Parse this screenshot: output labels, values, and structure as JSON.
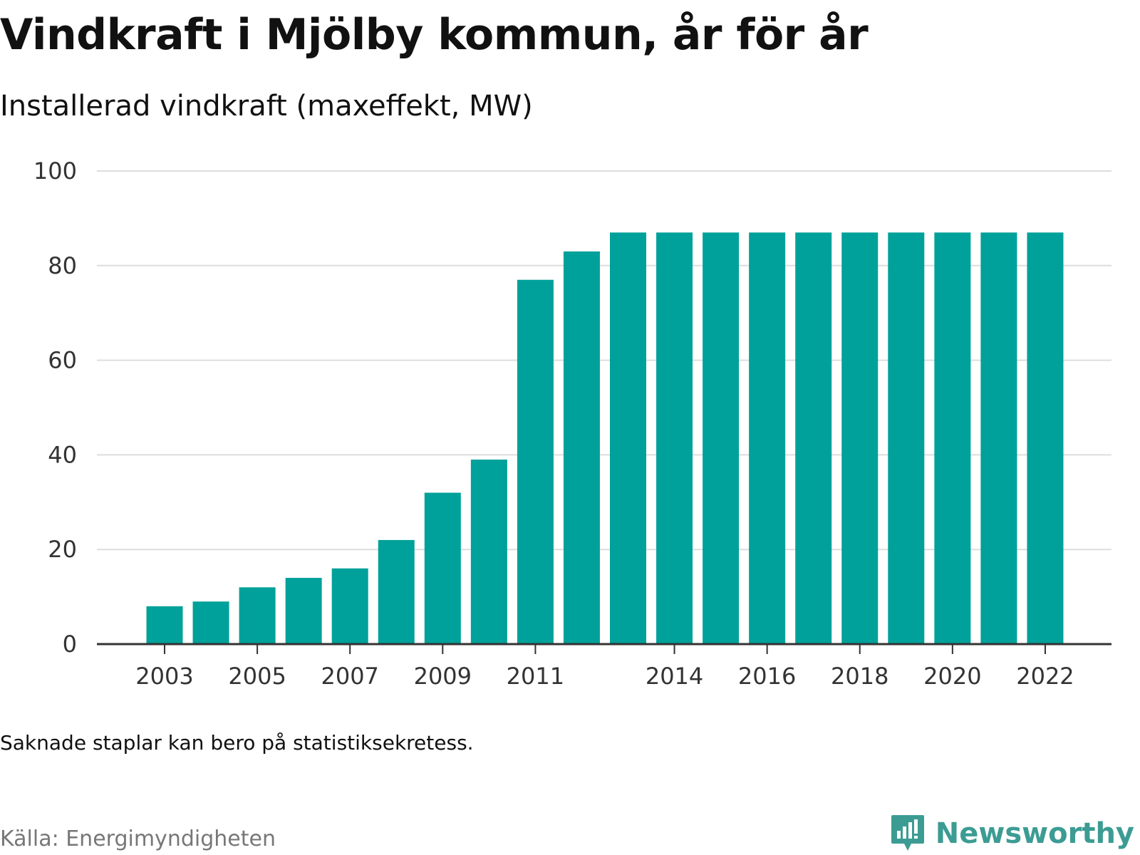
{
  "title": "Vindkraft i Mjölby kommun, år för år",
  "subtitle": "Installerad vindkraft (maxeffekt, MW)",
  "note": "Saknade staplar kan bero på statistiksekretess.",
  "source": "Källa: Energimyndigheten",
  "brand": {
    "name": "Newsworthy",
    "icon": "newsworthy-logo-icon",
    "color": "#3c9c93"
  },
  "colors": {
    "bar": "#00a19a",
    "grid": "#dddddd",
    "axis": "#333333"
  },
  "chart_data": {
    "type": "bar",
    "categories": [
      "2003",
      "2004",
      "2005",
      "2006",
      "2007",
      "2008",
      "2009",
      "2010",
      "2011",
      "2012",
      "2013",
      "2014",
      "2015",
      "2016",
      "2017",
      "2018",
      "2019",
      "2020",
      "2021",
      "2022"
    ],
    "values": [
      8,
      9,
      12,
      14,
      16,
      22,
      32,
      39,
      77,
      83,
      87,
      87,
      87,
      87,
      87,
      87,
      87,
      87,
      87,
      87
    ],
    "x_tick_labels": [
      "2003",
      "2005",
      "2007",
      "2009",
      "2011",
      "2014",
      "2016",
      "2018",
      "2020",
      "2022"
    ],
    "y_ticks": [
      0,
      20,
      40,
      60,
      80,
      100
    ],
    "ylim": [
      0,
      100
    ],
    "title": "Vindkraft i Mjölby kommun, år för år",
    "ylabel": "Installerad vindkraft (maxeffekt, MW)",
    "xlabel": "",
    "grid": true
  }
}
